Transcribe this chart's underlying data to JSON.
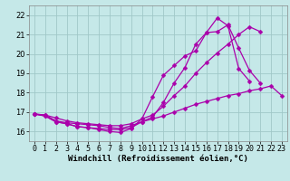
{
  "bg_color": "#c5e8e8",
  "grid_color": "#a0c8c8",
  "line_color": "#aa00aa",
  "marker": "D",
  "marker_size": 2.5,
  "line_width": 0.9,
  "xlabel": "Windchill (Refroidissement éolien,°C)",
  "xlabel_fontsize": 6.5,
  "tick_fontsize": 6.0,
  "xlim": [
    -0.5,
    23.5
  ],
  "ylim": [
    15.5,
    22.5
  ],
  "yticks": [
    16,
    17,
    18,
    19,
    20,
    21,
    22
  ],
  "xticks": [
    0,
    1,
    2,
    3,
    4,
    5,
    6,
    7,
    8,
    9,
    10,
    11,
    12,
    13,
    14,
    15,
    16,
    17,
    18,
    19,
    20,
    21,
    22,
    23
  ],
  "curves": [
    {
      "x": [
        0,
        1,
        2,
        3,
        4,
        5,
        6,
        7,
        8,
        9,
        10,
        11,
        12,
        13,
        14,
        15,
        16,
        17,
        18,
        19,
        20
      ],
      "y": [
        16.9,
        16.8,
        16.5,
        16.4,
        16.25,
        16.2,
        16.1,
        16.0,
        15.95,
        16.15,
        16.65,
        17.8,
        18.9,
        19.4,
        19.9,
        20.15,
        21.1,
        21.85,
        21.45,
        19.25,
        18.6
      ]
    },
    {
      "x": [
        0,
        1,
        2,
        3,
        4,
        5,
        6,
        7,
        8,
        9,
        10,
        11,
        12,
        13,
        14,
        15,
        16,
        17,
        18,
        19,
        20,
        21
      ],
      "y": [
        16.9,
        16.8,
        16.5,
        16.4,
        16.25,
        16.2,
        16.15,
        16.1,
        16.1,
        16.2,
        16.5,
        16.75,
        17.5,
        18.5,
        19.3,
        20.5,
        21.1,
        21.15,
        21.5,
        20.3,
        19.15,
        18.5
      ]
    },
    {
      "x": [
        0,
        1,
        2,
        3,
        4,
        5,
        6,
        7,
        8,
        9,
        10,
        11,
        12,
        13,
        14,
        15,
        16,
        17,
        18,
        19,
        20,
        21
      ],
      "y": [
        16.9,
        16.85,
        16.7,
        16.55,
        16.45,
        16.4,
        16.35,
        16.3,
        16.3,
        16.4,
        16.65,
        16.85,
        17.3,
        17.85,
        18.35,
        19.0,
        19.55,
        20.05,
        20.5,
        21.0,
        21.4,
        21.15
      ]
    },
    {
      "x": [
        0,
        1,
        2,
        3,
        4,
        5,
        6,
        7,
        8,
        9,
        10,
        11,
        12,
        13,
        14,
        15,
        16,
        17,
        18,
        19,
        20,
        21,
        22,
        23
      ],
      "y": [
        16.9,
        16.85,
        16.55,
        16.45,
        16.4,
        16.35,
        16.3,
        16.2,
        16.15,
        16.3,
        16.5,
        16.65,
        16.8,
        17.0,
        17.2,
        17.4,
        17.55,
        17.7,
        17.85,
        17.95,
        18.1,
        18.2,
        18.35,
        17.85
      ]
    }
  ]
}
